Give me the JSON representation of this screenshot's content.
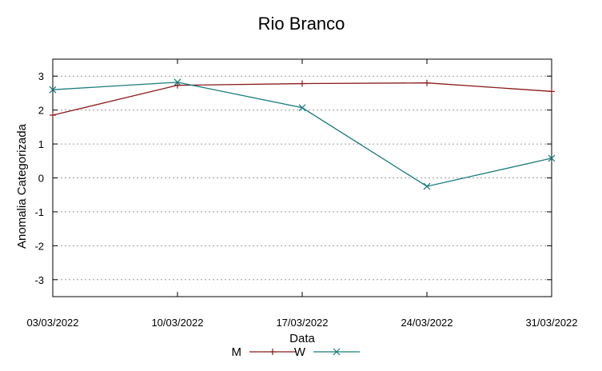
{
  "chart_data": {
    "type": "line",
    "title": "Rio Branco",
    "xlabel": "Data",
    "ylabel": "Anomalia Categorizada",
    "categories": [
      "03/03/2022",
      "10/03/2022",
      "17/03/2022",
      "24/03/2022",
      "31/03/2022"
    ],
    "ylim": [
      -3.5,
      3.5
    ],
    "yticks": [
      3,
      2,
      1,
      0,
      -1,
      -2,
      -3
    ],
    "ytick_labels": [
      "3",
      "2",
      "1",
      "0",
      "-1",
      "-2",
      "-3"
    ],
    "grid": true,
    "legend_position": "bottom",
    "series": [
      {
        "name": "M",
        "color": "#8b1a1a",
        "marker": "plus",
        "values": [
          1.85,
          2.73,
          2.78,
          2.8,
          2.55
        ]
      },
      {
        "name": "W",
        "color": "#1a7b7b",
        "marker": "cross",
        "values": [
          2.6,
          2.82,
          2.07,
          -0.25,
          0.58
        ]
      }
    ]
  }
}
